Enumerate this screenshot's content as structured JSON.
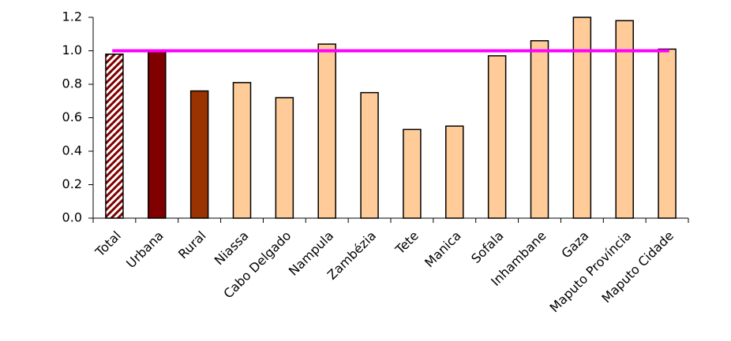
{
  "chart_data": {
    "type": "bar",
    "categories": [
      "Total",
      "Urbana",
      "Rural",
      "Niassa",
      "Cabo Delgado",
      "Nampula",
      "Zambézia",
      "Tete",
      "Manica",
      "Sofala",
      "Inhambane",
      "Gaza",
      "Maputo Província",
      "Maputo Cidade"
    ],
    "values": [
      0.98,
      1.0,
      0.76,
      0.81,
      0.72,
      1.04,
      0.75,
      0.53,
      0.55,
      0.97,
      1.06,
      1.2,
      1.18,
      1.01
    ],
    "colors": [
      "#800000",
      "#800000",
      "#993300",
      "#ffcc99",
      "#ffcc99",
      "#ffcc99",
      "#ffcc99",
      "#ffcc99",
      "#ffcc99",
      "#ffcc99",
      "#ffcc99",
      "#ffcc99",
      "#ffcc99",
      "#ffcc99"
    ],
    "hatch": [
      true,
      false,
      false,
      false,
      false,
      false,
      false,
      false,
      false,
      false,
      false,
      false,
      false,
      false
    ],
    "reference_line": {
      "value": 1,
      "color": "#ff00ff"
    },
    "ylim": [
      0,
      1.2
    ],
    "yticks": [
      {
        "value": 0,
        "label": "0.0"
      },
      0.2,
      0.4,
      0.6,
      0.8,
      {
        "value": 1,
        "label": "1.0"
      },
      1.2
    ],
    "grid": false
  }
}
